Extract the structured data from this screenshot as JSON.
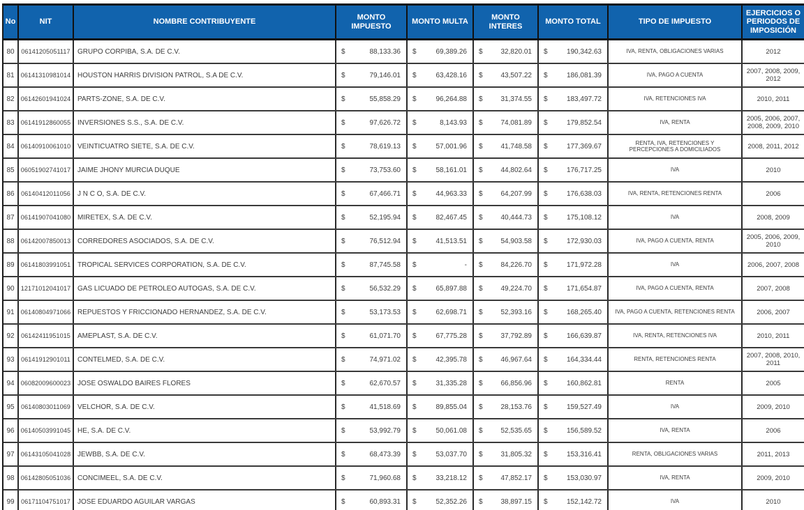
{
  "colors": {
    "header_bg": "#1163AD",
    "header_text": "#FFFFFF",
    "border": "#1A1A1A",
    "body_text": "#3D3D3D"
  },
  "table": {
    "currency": "$",
    "header": [
      "No",
      "NIT",
      "NOMBRE CONTRIBUYENTE",
      "MONTO IMPUESTO",
      "MONTO MULTA",
      "MONTO INTERES",
      "MONTO TOTAL",
      "TIPO DE IMPUESTO",
      "EJERCICIOS O PERIODOS DE IMPOSICIÓN"
    ],
    "rows": [
      {
        "no": "80",
        "nit": "06141205051117",
        "nombre": "GRUPO CORPIBA, S.A. DE C.V.",
        "impuesto": "88,133.36",
        "multa": "69,389.26",
        "interes": "32,820.01",
        "total": "190,342.63",
        "tipo": "IVA, RENTA, OBLIGACIONES VARIAS",
        "ejercicios": "2012"
      },
      {
        "no": "81",
        "nit": "06141310981014",
        "nombre": "HOUSTON HARRIS DIVISION PATROL, S.A DE C.V.",
        "impuesto": "79,146.01",
        "multa": "63,428.16",
        "interes": "43,507.22",
        "total": "186,081.39",
        "tipo": "IVA, PAGO A CUENTA",
        "ejercicios": "2007, 2008, 2009, 2012"
      },
      {
        "no": "82",
        "nit": "06142601941024",
        "nombre": "PARTS-ZONE, S.A. DE C.V.",
        "impuesto": "55,858.29",
        "multa": "96,264.88",
        "interes": "31,374.55",
        "total": "183,497.72",
        "tipo": "IVA, RETENCIONES IVA",
        "ejercicios": "2010, 2011"
      },
      {
        "no": "83",
        "nit": "06141912860055",
        "nombre": "INVERSIONES S.S., S.A. DE C.V.",
        "impuesto": "97,626.72",
        "multa": "8,143.93",
        "interes": "74,081.89",
        "total": "179,852.54",
        "tipo": "IVA, RENTA",
        "ejercicios": "2005, 2006, 2007, 2008, 2009, 2010"
      },
      {
        "no": "84",
        "nit": "06140910061010",
        "nombre": "VEINTICUATRO SIETE, S.A. DE C.V.",
        "impuesto": "78,619.13",
        "multa": "57,001.96",
        "interes": "41,748.58",
        "total": "177,369.67",
        "tipo": "RENTA, IVA, RETENCIONES Y PERCEPCIONES A DOMICILIADOS",
        "ejercicios": "2008, 2011, 2012"
      },
      {
        "no": "85",
        "nit": "06051902741017",
        "nombre": "JAIME JHONY MURCIA DUQUE",
        "impuesto": "73,753.60",
        "multa": "58,161.01",
        "interes": "44,802.64",
        "total": "176,717.25",
        "tipo": "IVA",
        "ejercicios": "2010"
      },
      {
        "no": "86",
        "nit": "06140412011056",
        "nombre": "J N C O, S.A. DE C.V.",
        "impuesto": "67,466.71",
        "multa": "44,963.33",
        "interes": "64,207.99",
        "total": "176,638.03",
        "tipo": "IVA, RENTA, RETENCIONES RENTA",
        "ejercicios": "2006"
      },
      {
        "no": "87",
        "nit": "06141907041080",
        "nombre": "MIRETEX, S.A. DE C.V.",
        "impuesto": "52,195.94",
        "multa": "82,467.45",
        "interes": "40,444.73",
        "total": "175,108.12",
        "tipo": "IVA",
        "ejercicios": "2008, 2009"
      },
      {
        "no": "88",
        "nit": "06142007850013",
        "nombre": "CORREDORES ASOCIADOS, S.A. DE C.V.",
        "impuesto": "76,512.94",
        "multa": "41,513.51",
        "interes": "54,903.58",
        "total": "172,930.03",
        "tipo": "IVA, PAGO A CUENTA, RENTA",
        "ejercicios": "2005, 2006, 2009, 2010"
      },
      {
        "no": "89",
        "nit": "06141803991051",
        "nombre": "TROPICAL SERVICES CORPORATION, S.A. DE C.V.",
        "impuesto": "87,745.58",
        "multa": "-",
        "interes": "84,226.70",
        "total": "171,972.28",
        "tipo": "IVA",
        "ejercicios": "2006, 2007, 2008"
      },
      {
        "no": "90",
        "nit": "12171012041017",
        "nombre": "GAS LICUADO DE PETROLEO AUTOGAS, S.A. DE C.V.",
        "impuesto": "56,532.29",
        "multa": "65,897.88",
        "interes": "49,224.70",
        "total": "171,654.87",
        "tipo": "IVA, PAGO A CUENTA, RENTA",
        "ejercicios": "2007, 2008"
      },
      {
        "no": "91",
        "nit": "06140804971066",
        "nombre": "REPUESTOS Y FRICCIONADO HERNANDEZ, S.A. DE C.V.",
        "impuesto": "53,173.53",
        "multa": "62,698.71",
        "interes": "52,393.16",
        "total": "168,265.40",
        "tipo": "IVA, PAGO A CUENTA, RETENCIONES RENTA",
        "ejercicios": "2006, 2007"
      },
      {
        "no": "92",
        "nit": "06142411951015",
        "nombre": "AMEPLAST, S.A. DE C.V.",
        "impuesto": "61,071.70",
        "multa": "67,775.28",
        "interes": "37,792.89",
        "total": "166,639.87",
        "tipo": "IVA, RENTA, RETENCIONES IVA",
        "ejercicios": "2010, 2011"
      },
      {
        "no": "93",
        "nit": "06141912901011",
        "nombre": "CONTELMED, S.A. DE C.V.",
        "impuesto": "74,971.02",
        "multa": "42,395.78",
        "interes": "46,967.64",
        "total": "164,334.44",
        "tipo": "RENTA, RETENCIONES RENTA",
        "ejercicios": "2007, 2008, 2010, 2011"
      },
      {
        "no": "94",
        "nit": "06082009600023",
        "nombre": "JOSE OSWALDO BAIRES FLORES",
        "impuesto": "62,670.57",
        "multa": "31,335.28",
        "interes": "66,856.96",
        "total": "160,862.81",
        "tipo": "RENTA",
        "ejercicios": "2005"
      },
      {
        "no": "95",
        "nit": "06140803011069",
        "nombre": "VELCHOR, S.A. DE C.V.",
        "impuesto": "41,518.69",
        "multa": "89,855.04",
        "interes": "28,153.76",
        "total": "159,527.49",
        "tipo": "IVA",
        "ejercicios": "2009, 2010"
      },
      {
        "no": "96",
        "nit": "06140503991045",
        "nombre": "HE, S.A. DE C.V.",
        "impuesto": "53,992.79",
        "multa": "50,061.08",
        "interes": "52,535.65",
        "total": "156,589.52",
        "tipo": "IVA, RENTA",
        "ejercicios": "2006"
      },
      {
        "no": "97",
        "nit": "06143105041028",
        "nombre": "JEWBB, S.A. DE C.V.",
        "impuesto": "68,473.39",
        "multa": "53,037.70",
        "interes": "31,805.32",
        "total": "153,316.41",
        "tipo": "RENTA, OBLIGACIONES VARIAS",
        "ejercicios": "2011, 2013"
      },
      {
        "no": "98",
        "nit": "06142805051036",
        "nombre": "CONCIMEEL, S.A. DE C.V.",
        "impuesto": "71,960.68",
        "multa": "33,218.12",
        "interes": "47,852.17",
        "total": "153,030.97",
        "tipo": "IVA, RENTA",
        "ejercicios": "2009, 2010"
      },
      {
        "no": "99",
        "nit": "06171104751017",
        "nombre": "JOSE EDUARDO AGUILAR VARGAS",
        "impuesto": "60,893.31",
        "multa": "52,352.26",
        "interes": "38,897.15",
        "total": "152,142.72",
        "tipo": "IVA",
        "ejercicios": "2010"
      }
    ]
  }
}
